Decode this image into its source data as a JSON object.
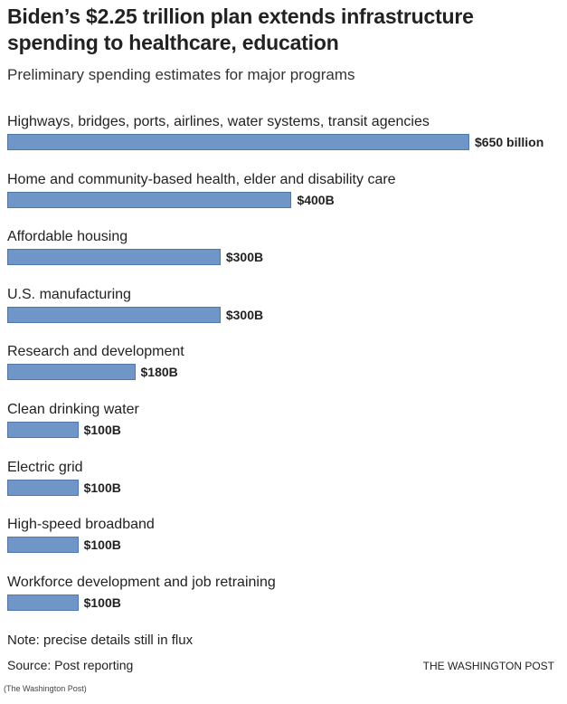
{
  "chart_data": {
    "type": "bar",
    "orientation": "horizontal",
    "title": "Biden’s $2.25 trillion plan extends infrastructure spending to healthcare, education",
    "subtitle": "Preliminary spending estimates for major programs",
    "categories": [
      "Highways, bridges, ports, airlines, water systems, transit agencies",
      "Home and community-based health, elder and disability care",
      "Affordable housing",
      "U.S. manufacturing",
      "Research and development",
      "Clean drinking water",
      "Electric grid",
      "High-speed broadband",
      "Workforce development and job retraining"
    ],
    "values": [
      650,
      400,
      300,
      300,
      180,
      100,
      100,
      100,
      100
    ],
    "value_labels": [
      "$650 billion",
      "$400B",
      "$300B",
      "$300B",
      "$180B",
      "$100B",
      "$100B",
      "$100B",
      "$100B"
    ],
    "unit": "billion USD",
    "xlim": [
      0,
      650
    ],
    "grid": false,
    "bar_color": "#7096c8",
    "note": "Note: precise details still in flux",
    "source": "Source: Post reporting",
    "brand": "THE WASHINGTON POST",
    "credit": "(The Washington Post)"
  }
}
